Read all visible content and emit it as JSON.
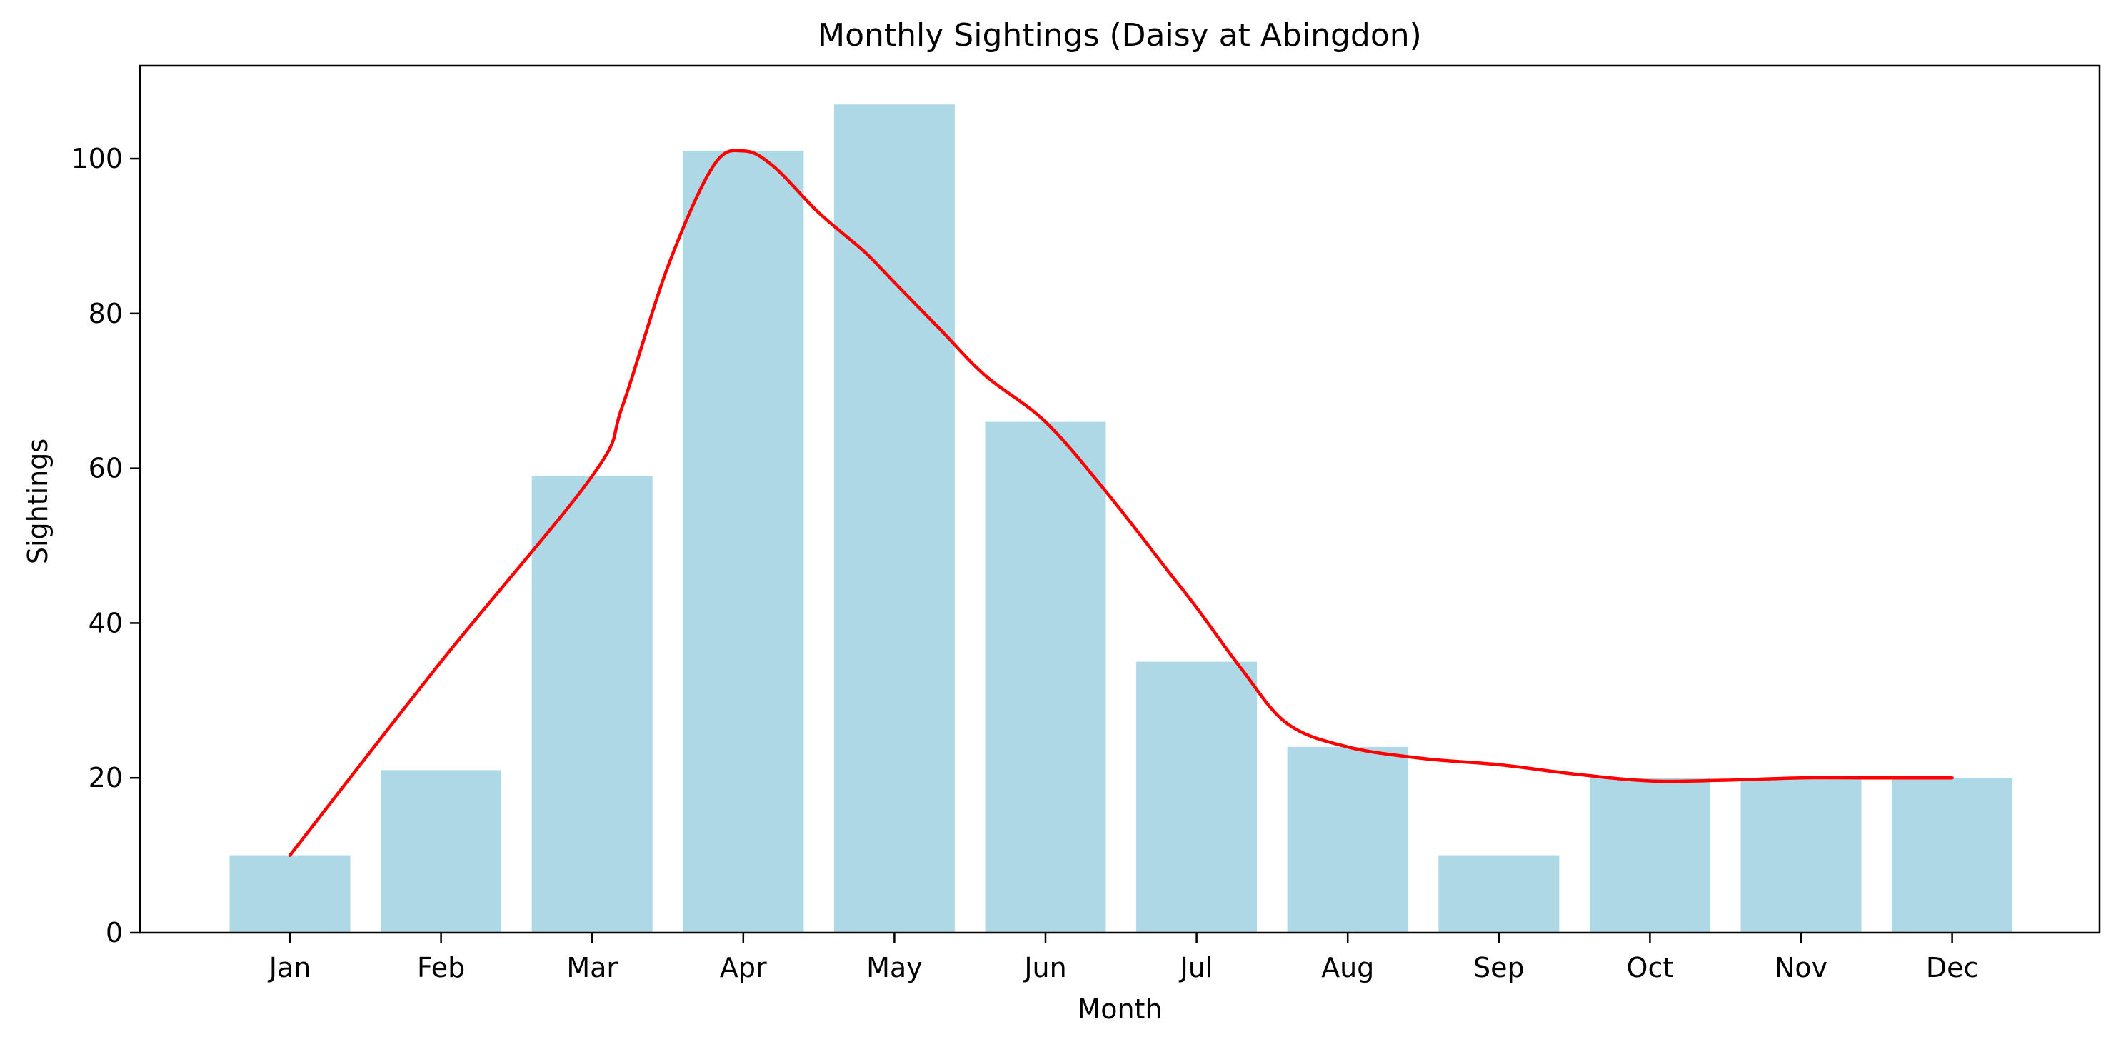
{
  "chart_data": {
    "type": "bar",
    "title": "Monthly Sightings (Daisy at Abingdon)",
    "xlabel": "Month",
    "ylabel": "Sightings",
    "categories": [
      "Jan",
      "Feb",
      "Mar",
      "Apr",
      "May",
      "Jun",
      "Jul",
      "Aug",
      "Sep",
      "Oct",
      "Nov",
      "Dec"
    ],
    "series": [
      {
        "type": "bar",
        "values": [
          10,
          21,
          59,
          101,
          107,
          66,
          35,
          24,
          10,
          20,
          20,
          20
        ]
      },
      {
        "type": "line",
        "curve": "smooth",
        "x": [
          0,
          1,
          2,
          2.2,
          2.5,
          2.8,
          3,
          3.2,
          3.5,
          3.8,
          4,
          4.3,
          4.6,
          5,
          5.4,
          5.8,
          6,
          6.3,
          6.6,
          7,
          7.5,
          8,
          8.5,
          9,
          9.5,
          10,
          10.5,
          11
        ],
        "values": [
          10,
          35,
          59,
          68,
          86,
          99,
          101,
          99,
          93,
          88,
          84,
          78,
          72,
          66,
          57,
          47,
          42,
          34,
          27,
          24,
          22.5,
          21.7,
          20.5,
          19.6,
          19.7,
          20,
          20,
          20
        ]
      }
    ],
    "yticks": [
      0,
      20,
      40,
      60,
      80,
      100
    ],
    "ylim": [
      0,
      112
    ],
    "grid": false,
    "colors": {
      "bar": "#add8e6",
      "line": "#ff0000",
      "axis": "#000000"
    }
  }
}
